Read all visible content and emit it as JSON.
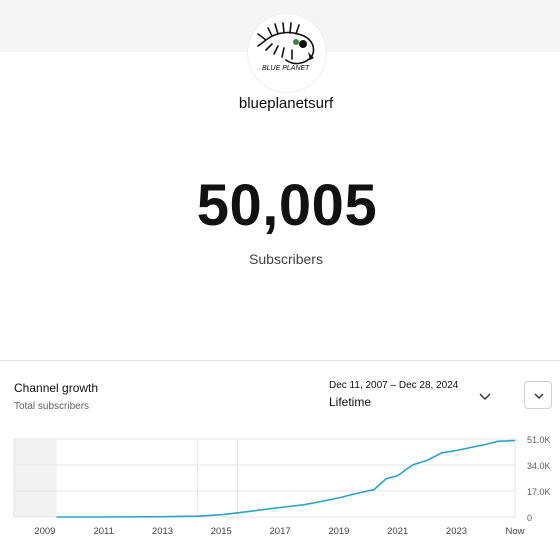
{
  "channel": {
    "name": "blueplanetsurf",
    "subscriber_count": "50,005",
    "subscriber_label": "Subscribers",
    "avatar_icon": "fish-skeleton-logo-icon",
    "avatar_logo_text": "BLUE PLANET"
  },
  "growth_card": {
    "title": "Channel growth",
    "subtitle": "Total subscribers",
    "date_range": "Dec 11, 2007 – Dec 28, 2024",
    "range_value": "Lifetime",
    "dropdown_icon": "chevron-down-icon",
    "expand_icon": "chevron-down-icon"
  },
  "colors": {
    "line": "#2aa3c9",
    "top_band": "#f5f5f5",
    "shade": "#f2f2f2"
  },
  "chart_data": {
    "type": "line",
    "title": "",
    "xlabel": "",
    "ylabel": "",
    "x_tick_labels": [
      "2009",
      "2011",
      "2013",
      "2015",
      "2017",
      "2019",
      "2021",
      "2023",
      "Now"
    ],
    "y_tick_labels": [
      "51.0K",
      "34.0K",
      "17.0K",
      "0"
    ],
    "ylim": [
      0,
      51000
    ],
    "xlim": [
      2007.95,
      2024.99
    ],
    "y_axis_position": "right",
    "grid": "horizontal",
    "shaded_region": [
      2007.95,
      2009.4
    ],
    "series": [
      {
        "x": [
          2009.4,
          2011,
          2013,
          2014.2,
          2015,
          2015.6,
          2016.3,
          2017,
          2017.8,
          2018.5,
          2019,
          2019.5,
          2020.2,
          2020.6,
          2021,
          2021.5,
          2022,
          2022.5,
          2023,
          2023.5,
          2024,
          2024.4,
          2024.99
        ],
        "y": [
          0,
          0,
          200,
          500,
          1500,
          2800,
          4500,
          6200,
          8000,
          10500,
          12500,
          15000,
          18000,
          25000,
          27000,
          34000,
          37000,
          42000,
          43500,
          45500,
          47500,
          49500,
          50005
        ]
      }
    ]
  }
}
